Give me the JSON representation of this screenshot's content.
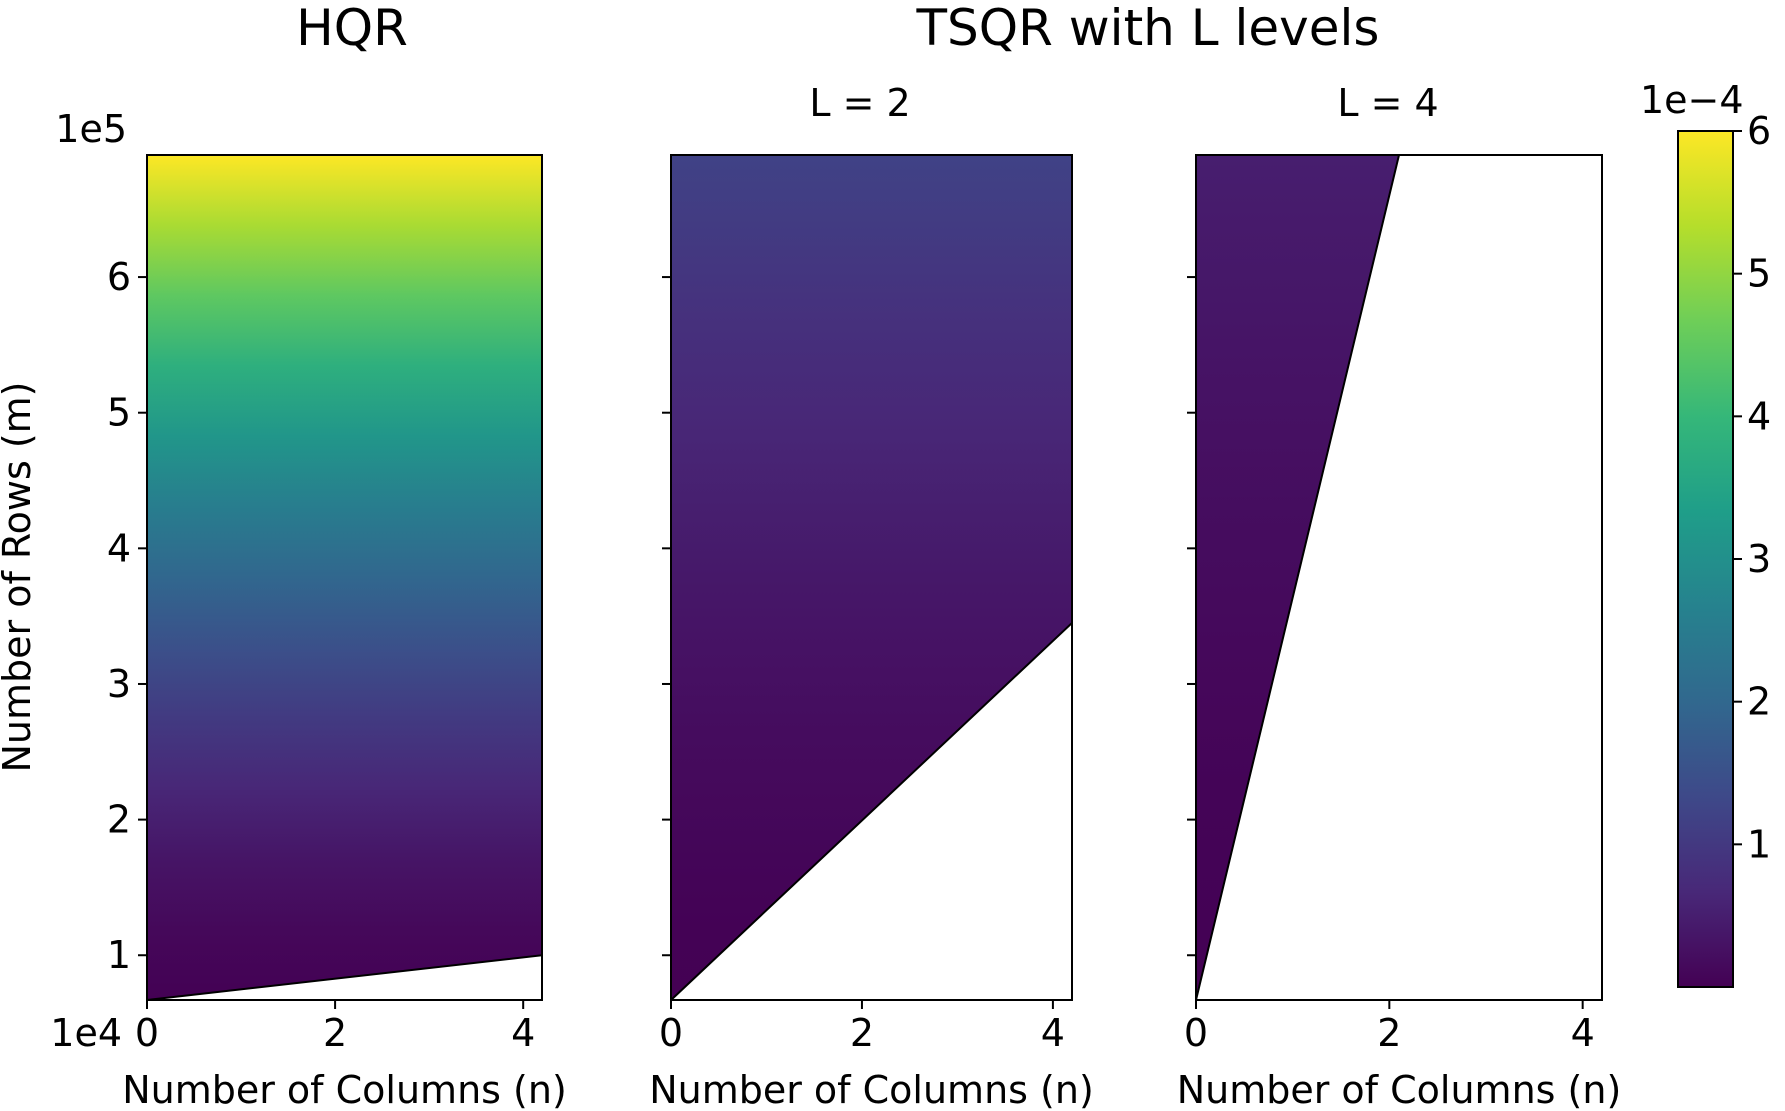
{
  "chart_data": [
    {
      "type": "heatmap",
      "panel": "hqr",
      "title": "HQR",
      "xlabel": "Number of Columns (n)",
      "ylabel": "Number of Rows (m)",
      "x_offset_label": "1e4",
      "y_offset_label": "1e5",
      "xlim": [
        0,
        4.2
      ],
      "ylim": [
        0.67,
        6.9
      ],
      "x_ticks": [
        0,
        2,
        4
      ],
      "x_tick_labels": [
        "0",
        "2",
        "4"
      ],
      "y_ticks": [
        1,
        2,
        3,
        4,
        5,
        6
      ],
      "y_tick_labels": [
        "1",
        "2",
        "3",
        "4",
        "5",
        "6"
      ],
      "feasible_boundary": {
        "description": "colored only where m >= boundary(n)",
        "x": [
          0,
          4.2
        ],
        "y": [
          0.67,
          0.67
        ]
      },
      "value_range": [
        0,
        0.0006
      ],
      "value_at_ylim_max": 0.0006
    },
    {
      "type": "heatmap",
      "panel": "tsqr_l2",
      "title": "L = 2",
      "group_title": "TSQR with L levels",
      "xlabel": "Number of Columns (n)",
      "xlim": [
        0,
        4.2
      ],
      "ylim": [
        0.67,
        6.9
      ],
      "x_ticks": [
        0,
        2,
        4
      ],
      "x_tick_labels": [
        "0",
        "2",
        "4"
      ],
      "y_ticks": [
        1,
        2,
        3,
        4,
        5,
        6
      ],
      "feasible_boundary": {
        "x": [
          0,
          4.2
        ],
        "y": [
          0.67,
          3.45
        ]
      },
      "value_range": [
        0,
        0.0006
      ],
      "value_at_ylim_max": 0.00012
    },
    {
      "type": "heatmap",
      "panel": "tsqr_l4",
      "title": "L = 4",
      "xlabel": "Number of Columns (n)",
      "xlim": [
        0,
        4.2
      ],
      "ylim": [
        0.67,
        6.9
      ],
      "x_ticks": [
        0,
        2,
        4
      ],
      "x_tick_labels": [
        "0",
        "2",
        "4"
      ],
      "y_ticks": [
        1,
        2,
        3,
        4,
        5,
        6
      ],
      "feasible_boundary": {
        "x": [
          0,
          2.1
        ],
        "y": [
          0.67,
          6.9
        ]
      },
      "value_range": [
        0,
        0.0006
      ],
      "value_at_ylim_max": 5e-05
    }
  ],
  "colorbar": {
    "colormap": "viridis",
    "offset_label": "1e−4",
    "range": [
      0,
      6
    ],
    "ticks": [
      1,
      2,
      3,
      4,
      5,
      6
    ],
    "tick_labels": [
      "1",
      "2",
      "3",
      "4",
      "5",
      "6"
    ]
  },
  "viridis_stops": [
    "#440154",
    "#482878",
    "#3e4989",
    "#31688e",
    "#26828e",
    "#1f9e89",
    "#35b779",
    "#6ece58",
    "#b5de2b",
    "#fde725"
  ]
}
